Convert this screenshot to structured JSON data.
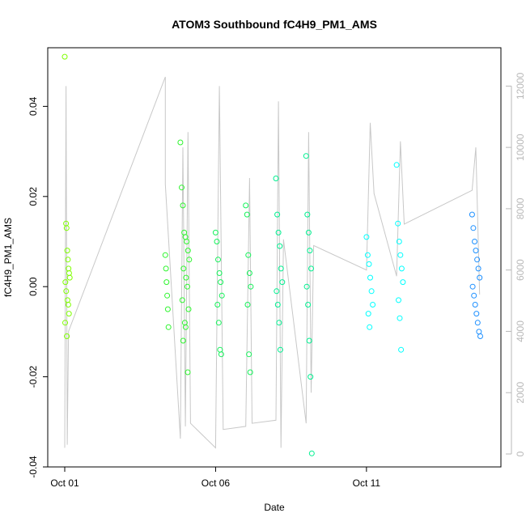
{
  "chart_data": {
    "type": "scatter",
    "title": "ATOM3 Southbound fC4H9_PM1_AMS",
    "xlabel": "Date",
    "ylabel": "fC4H9_PM1_AMS",
    "x_axis": {
      "type": "date",
      "range": [
        "2016-10-01",
        "2016-10-15"
      ],
      "tick_values": [
        "2016-10-01",
        "2016-10-06",
        "2016-10-11"
      ],
      "tick_labels": [
        "Oct 01",
        "Oct 06",
        "Oct 11"
      ]
    },
    "y_axis": {
      "range": [
        -0.04,
        0.053
      ],
      "tick_values": [
        -0.04,
        -0.02,
        0.0,
        0.02,
        0.04
      ],
      "tick_labels": [
        "-0.04",
        "-0.02",
        "0.00",
        "0.02",
        "0.04"
      ]
    },
    "y2_axis": {
      "color": "#b8b8b8",
      "range": [
        0,
        12300
      ],
      "tick_values": [
        0,
        2000,
        4000,
        6000,
        8000,
        10000,
        12000
      ],
      "tick_labels": [
        "0",
        "2000",
        "4000",
        "6000",
        "8000",
        "10000",
        "12000"
      ]
    },
    "grid": false,
    "secondary_series": {
      "color": "#c8c8c8",
      "points": [
        [
          "2016-10-01T00:00",
          200
        ],
        [
          "2016-10-01T01:00",
          12000
        ],
        [
          "2016-10-01T02:00",
          300
        ],
        [
          "2016-10-01T03:00",
          4000
        ],
        [
          "2016-10-04T08:00",
          12300
        ],
        [
          "2016-10-04T08:00",
          8800
        ],
        [
          "2016-10-04T20:00",
          500
        ],
        [
          "2016-10-04T22:00",
          10000
        ],
        [
          "2016-10-05T00:00",
          900
        ],
        [
          "2016-10-05T02:00",
          10500
        ],
        [
          "2016-10-05T04:00",
          1000
        ],
        [
          "2016-10-06T00:00",
          200
        ],
        [
          "2016-10-06T03:00",
          12000
        ],
        [
          "2016-10-06T06:00",
          800
        ],
        [
          "2016-10-07T00:00",
          900
        ],
        [
          "2016-10-07T03:00",
          9000
        ],
        [
          "2016-10-07T05:00",
          1000
        ],
        [
          "2016-10-08T00:00",
          1100
        ],
        [
          "2016-10-08T02:00",
          11500
        ],
        [
          "2016-10-08T04:00",
          200
        ],
        [
          "2016-10-08T06:00",
          7000
        ],
        [
          "2016-10-09T00:00",
          1000
        ],
        [
          "2016-10-09T02:00",
          10500
        ],
        [
          "2016-10-09T04:00",
          2000
        ],
        [
          "2016-10-09T06:00",
          6800
        ],
        [
          "2016-10-11T00:00",
          6000
        ],
        [
          "2016-10-11T03:00",
          10800
        ],
        [
          "2016-10-11T06:00",
          8500
        ],
        [
          "2016-10-12T00:00",
          5800
        ],
        [
          "2016-10-12T03:00",
          10200
        ],
        [
          "2016-10-12T06:00",
          7500
        ],
        [
          "2016-10-14T12:00",
          8600
        ],
        [
          "2016-10-14T15:00",
          10000
        ],
        [
          "2016-10-14T18:00",
          5200
        ]
      ]
    },
    "series": [
      {
        "color": "#7fff00",
        "x": [
          "2016-10-01T00:00",
          "2016-10-01T01:00",
          "2016-10-01T01:30",
          "2016-10-01T02:00",
          "2016-10-01T02:30",
          "2016-10-01T03:00",
          "2016-10-01T03:30",
          "2016-10-01T04:00",
          "2016-10-01T00:30",
          "2016-10-01T01:10",
          "2016-10-01T02:10",
          "2016-10-01T02:50",
          "2016-10-01T03:20",
          "2016-10-01T00:20",
          "2016-10-01T01:40"
        ],
        "y": [
          0.051,
          0.014,
          0.013,
          0.008,
          0.006,
          0.004,
          0.003,
          0.002,
          0.001,
          -0.001,
          -0.003,
          -0.004,
          -0.006,
          -0.008,
          -0.011
        ]
      },
      {
        "color": "#2ff52f",
        "x": [
          "2016-10-04T08:00",
          "2016-10-04T08:30",
          "2016-10-04T09:00",
          "2016-10-04T09:30",
          "2016-10-04T10:00",
          "2016-10-04T10:30",
          "2016-10-04T20:00",
          "2016-10-04T21:00",
          "2016-10-04T22:00",
          "2016-10-04T23:00",
          "2016-10-05T00:00",
          "2016-10-05T01:00",
          "2016-10-05T02:00",
          "2016-10-05T03:00",
          "2016-10-04T22:30",
          "2016-10-05T00:30",
          "2016-10-05T01:30",
          "2016-10-04T21:30",
          "2016-10-05T02:30",
          "2016-10-04T23:30",
          "2016-10-05T00:10",
          "2016-10-04T22:10",
          "2016-10-05T01:50"
        ],
        "y": [
          0.007,
          0.004,
          0.001,
          -0.002,
          -0.005,
          -0.009,
          0.032,
          0.022,
          0.018,
          0.012,
          0.011,
          0.01,
          0.008,
          0.006,
          0.004,
          0.002,
          0.0,
          -0.003,
          -0.005,
          -0.008,
          -0.009,
          -0.012,
          -0.019
        ]
      },
      {
        "color": "#15f25a",
        "x": [
          "2016-10-06T00:00",
          "2016-10-06T01:00",
          "2016-10-06T02:00",
          "2016-10-06T03:00",
          "2016-10-06T04:00",
          "2016-10-06T05:00",
          "2016-10-06T01:30",
          "2016-10-06T02:30",
          "2016-10-06T03:30",
          "2016-10-06T04:30",
          "2016-10-07T00:00",
          "2016-10-07T01:00",
          "2016-10-07T02:00",
          "2016-10-07T03:00",
          "2016-10-07T04:00",
          "2016-10-07T01:30",
          "2016-10-07T02:30",
          "2016-10-07T03:30"
        ],
        "y": [
          0.012,
          0.01,
          0.006,
          0.003,
          0.001,
          -0.002,
          -0.004,
          -0.008,
          -0.014,
          -0.015,
          0.018,
          0.016,
          0.007,
          0.003,
          0.0,
          -0.004,
          -0.015,
          -0.019
        ]
      },
      {
        "color": "#00f090",
        "x": [
          "2016-10-08T00:00",
          "2016-10-08T01:00",
          "2016-10-08T02:00",
          "2016-10-08T03:00",
          "2016-10-08T04:00",
          "2016-10-08T05:00",
          "2016-10-08T00:30",
          "2016-10-08T01:30",
          "2016-10-08T02:30",
          "2016-10-08T03:30",
          "2016-10-09T00:00",
          "2016-10-09T01:00",
          "2016-10-09T02:00",
          "2016-10-09T03:00",
          "2016-10-09T04:00",
          "2016-10-09T00:30",
          "2016-10-09T01:30",
          "2016-10-09T02:30",
          "2016-10-09T03:30",
          "2016-10-09T04:30"
        ],
        "y": [
          0.024,
          0.016,
          0.012,
          0.009,
          0.004,
          0.001,
          -0.001,
          -0.004,
          -0.008,
          -0.014,
          0.029,
          0.016,
          0.012,
          0.008,
          0.004,
          0.0,
          -0.004,
          -0.012,
          -0.02,
          -0.037
        ]
      },
      {
        "color": "#00ffff",
        "x": [
          "2016-10-11T00:00",
          "2016-10-11T01:00",
          "2016-10-11T02:00",
          "2016-10-11T03:00",
          "2016-10-11T04:00",
          "2016-10-11T05:00",
          "2016-10-11T01:30",
          "2016-10-11T02:30",
          "2016-10-12T00:00",
          "2016-10-12T01:00",
          "2016-10-12T02:00",
          "2016-10-12T03:00",
          "2016-10-12T04:00",
          "2016-10-12T05:00",
          "2016-10-12T01:30",
          "2016-10-12T02:30",
          "2016-10-12T03:30"
        ],
        "y": [
          0.011,
          0.007,
          0.005,
          0.002,
          -0.001,
          -0.004,
          -0.006,
          -0.009,
          0.027,
          0.014,
          0.01,
          0.007,
          0.004,
          0.001,
          -0.003,
          -0.007,
          -0.014
        ]
      },
      {
        "color": "#1e90ff",
        "x": [
          "2016-10-14T12:00",
          "2016-10-14T13:00",
          "2016-10-14T14:00",
          "2016-10-14T15:00",
          "2016-10-14T16:00",
          "2016-10-14T17:00",
          "2016-10-14T18:00",
          "2016-10-14T12:30",
          "2016-10-14T13:30",
          "2016-10-14T14:30",
          "2016-10-14T15:30",
          "2016-10-14T16:30",
          "2016-10-14T17:30",
          "2016-10-14T18:30"
        ],
        "y": [
          0.016,
          0.013,
          0.01,
          0.008,
          0.006,
          0.004,
          0.002,
          0.0,
          -0.002,
          -0.004,
          -0.006,
          -0.008,
          -0.01,
          -0.011
        ]
      }
    ]
  }
}
